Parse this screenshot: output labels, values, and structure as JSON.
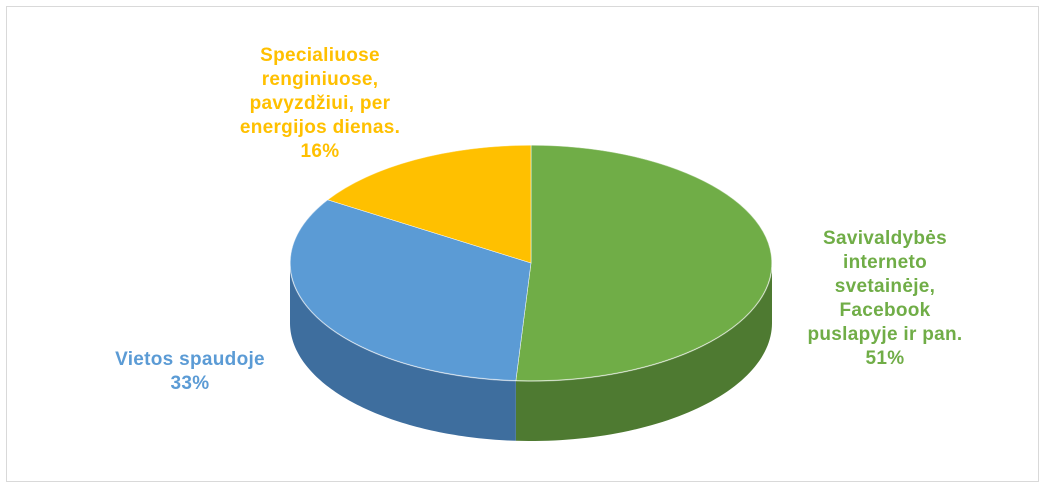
{
  "chart_data": {
    "type": "pie",
    "title": "",
    "slices": [
      {
        "label": "Savivaldybės\ninterneto\nsvetainėje,\nFacebook\npuslapyje ir pan.",
        "value": 51,
        "value_label": "51%",
        "color": "#70AD47",
        "side_color": "#4E7A31"
      },
      {
        "label": "Vietos spaudoje",
        "value": 33,
        "value_label": "33%",
        "color": "#5B9BD5",
        "side_color": "#3E6E9E"
      },
      {
        "label": "Specialiuose\nrenginiuose,\npavyzdžiui, per\nenergijos dienas.",
        "value": 16,
        "value_label": "16%",
        "color": "#FFC000",
        "side_color": "#C99600"
      }
    ]
  }
}
